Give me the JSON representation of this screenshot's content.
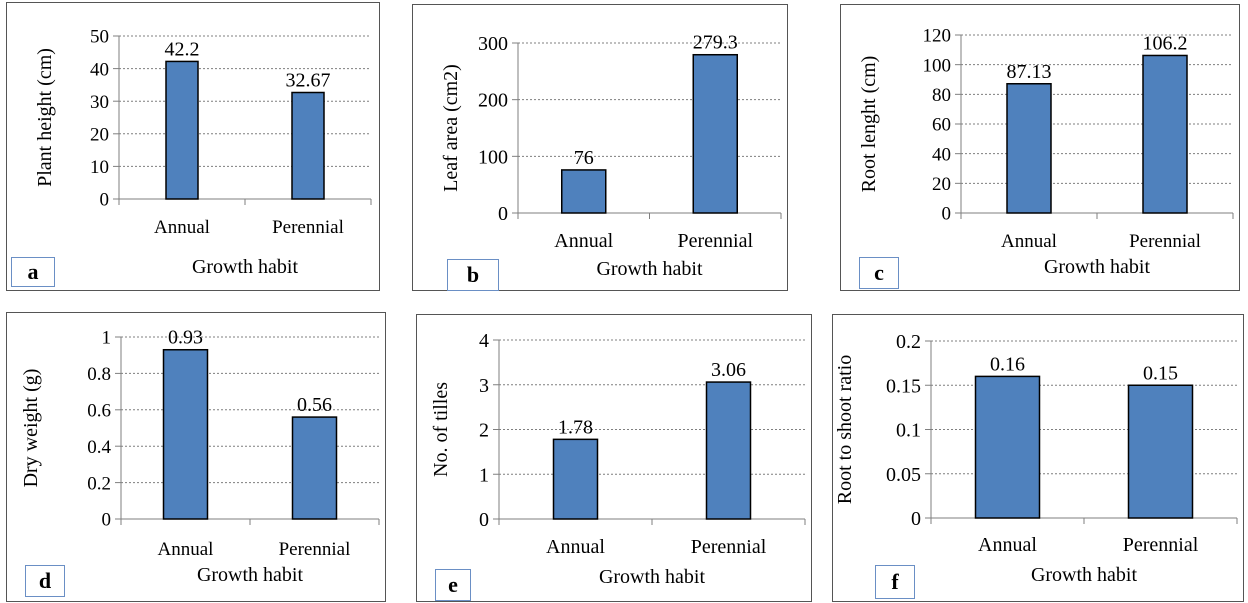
{
  "chart_data": [
    {
      "type": "bar",
      "panel_label": "a",
      "categories": [
        "Annual",
        "Perennial"
      ],
      "values": [
        42.2,
        32.67
      ],
      "data_labels": [
        "42.2",
        "32.67"
      ],
      "xlabel": "Growth habit",
      "ylabel": "Plant height (cm)",
      "ylim": [
        0,
        50
      ],
      "yticks": [
        "0",
        "10",
        "20",
        "30",
        "40",
        "50"
      ],
      "grid": true,
      "bar_color": "#4f81bd"
    },
    {
      "type": "bar",
      "panel_label": "b",
      "categories": [
        "Annual",
        "Perennial"
      ],
      "values": [
        76,
        279.3
      ],
      "data_labels": [
        "76",
        "279.3"
      ],
      "xlabel": "Growth habit",
      "ylabel": "Leaf area (cm2)",
      "ylim": [
        0,
        300
      ],
      "yticks": [
        "0",
        "100",
        "200",
        "300"
      ],
      "grid": true,
      "bar_color": "#4f81bd"
    },
    {
      "type": "bar",
      "panel_label": "c",
      "categories": [
        "Annual",
        "Perennial"
      ],
      "values": [
        87.13,
        106.2
      ],
      "data_labels": [
        "87.13",
        "106.2"
      ],
      "xlabel": "Growth habit",
      "ylabel": "Root lenght (cm)",
      "ylim": [
        0,
        120
      ],
      "yticks": [
        "0",
        "20",
        "40",
        "60",
        "80",
        "100",
        "120"
      ],
      "grid": true,
      "bar_color": "#4f81bd"
    },
    {
      "type": "bar",
      "panel_label": "d",
      "categories": [
        "Annual",
        "Perennial"
      ],
      "values": [
        0.93,
        0.56
      ],
      "data_labels": [
        "0.93",
        "0.56"
      ],
      "xlabel": "Growth habit",
      "ylabel": "Dry weight (g)",
      "ylim": [
        0,
        1
      ],
      "yticks": [
        "0",
        "0.2",
        "0.4",
        "0.6",
        "0.8",
        "1"
      ],
      "grid": true,
      "bar_color": "#4f81bd"
    },
    {
      "type": "bar",
      "panel_label": "e",
      "categories": [
        "Annual",
        "Perennial"
      ],
      "values": [
        1.78,
        3.06
      ],
      "data_labels": [
        "1.78",
        "3.06"
      ],
      "xlabel": "Growth habit",
      "ylabel": "No. of tilles",
      "ylim": [
        0,
        4
      ],
      "yticks": [
        "0",
        "1",
        "2",
        "3",
        "4"
      ],
      "grid": true,
      "bar_color": "#4f81bd"
    },
    {
      "type": "bar",
      "panel_label": "f",
      "categories": [
        "Annual",
        "Perennial"
      ],
      "values": [
        0.16,
        0.15
      ],
      "data_labels": [
        "0.16",
        "0.15"
      ],
      "xlabel": "Growth habit",
      "ylabel": "Root to shoot ratio",
      "ylim": [
        0,
        0.2
      ],
      "yticks": [
        "0",
        "0.05",
        "0.1",
        "0.15",
        "0.2"
      ],
      "grid": true,
      "bar_color": "#4f81bd"
    }
  ]
}
